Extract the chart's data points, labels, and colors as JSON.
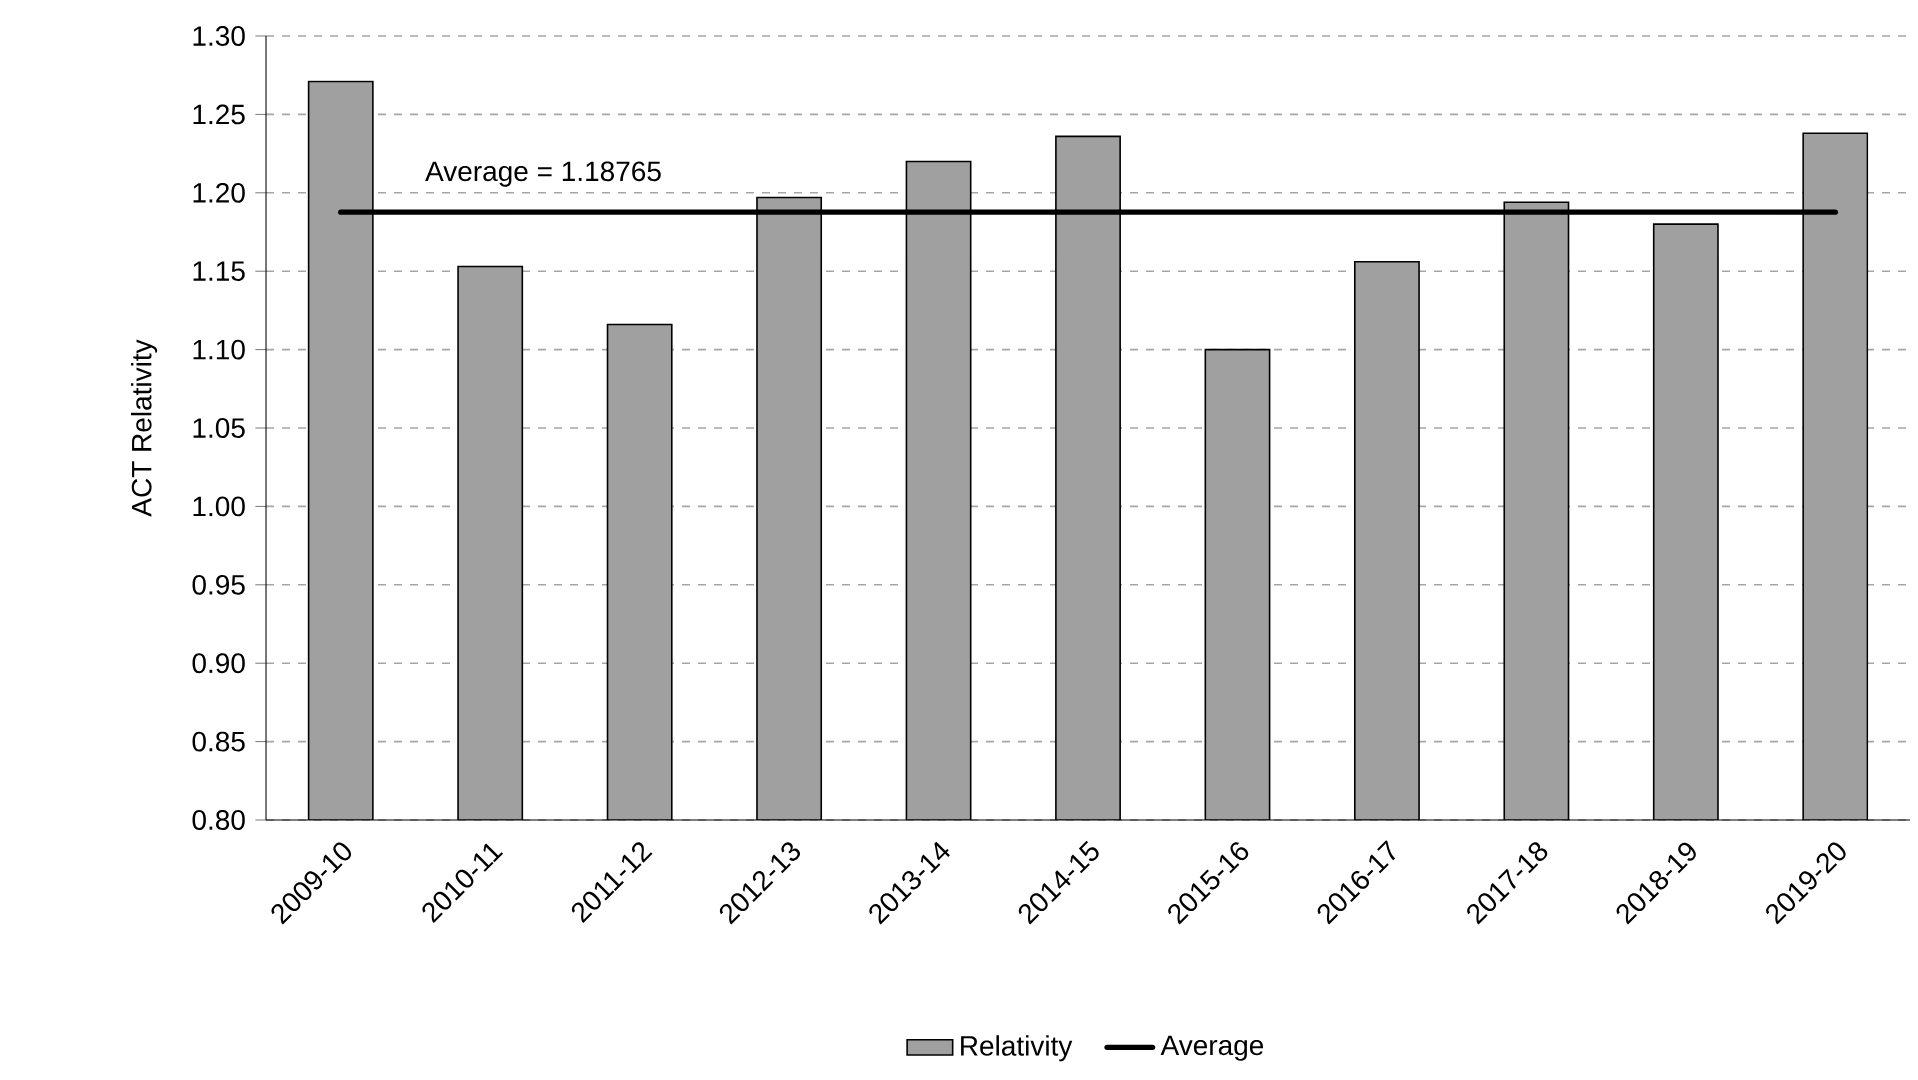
{
  "chart_data": {
    "type": "bar",
    "ylabel": "ACT Relativity",
    "categories": [
      "2009-10",
      "2010-11",
      "2011-12",
      "2012-13",
      "2013-14",
      "2014-15",
      "2015-16",
      "2016-17",
      "2017-18",
      "2018-19",
      "2019-20"
    ],
    "series": [
      {
        "name": "Relativity",
        "color": "#a0a0a0",
        "values": [
          1.271,
          1.153,
          1.116,
          1.197,
          1.22,
          1.236,
          1.1,
          1.156,
          1.194,
          1.18,
          1.238
        ]
      }
    ],
    "ref_lines": [
      {
        "axis": "y",
        "value": 1.18765,
        "label": "Average",
        "color": "#000000",
        "line_style": "solid"
      }
    ],
    "ylim": [
      0.8,
      1.3
    ],
    "yticks": [
      {
        "value": 0.8,
        "label": "0.80"
      },
      {
        "value": 0.85,
        "label": "0.85"
      },
      {
        "value": 0.9,
        "label": "0.90"
      },
      {
        "value": 0.95,
        "label": "0.95"
      },
      {
        "value": 1.0,
        "label": "1.00"
      },
      {
        "value": 1.05,
        "label": "1.05"
      },
      {
        "value": 1.1,
        "label": "1.10"
      },
      {
        "value": 1.15,
        "label": "1.15"
      },
      {
        "value": 1.2,
        "label": "1.20"
      },
      {
        "value": 1.25,
        "label": "1.25"
      },
      {
        "value": 1.3,
        "label": "1.30"
      }
    ],
    "annotations": [
      {
        "text": "Average = 1.18765",
        "x": "2010-11",
        "y": 1.18765
      }
    ],
    "grid": "y",
    "legend": "bottom"
  }
}
